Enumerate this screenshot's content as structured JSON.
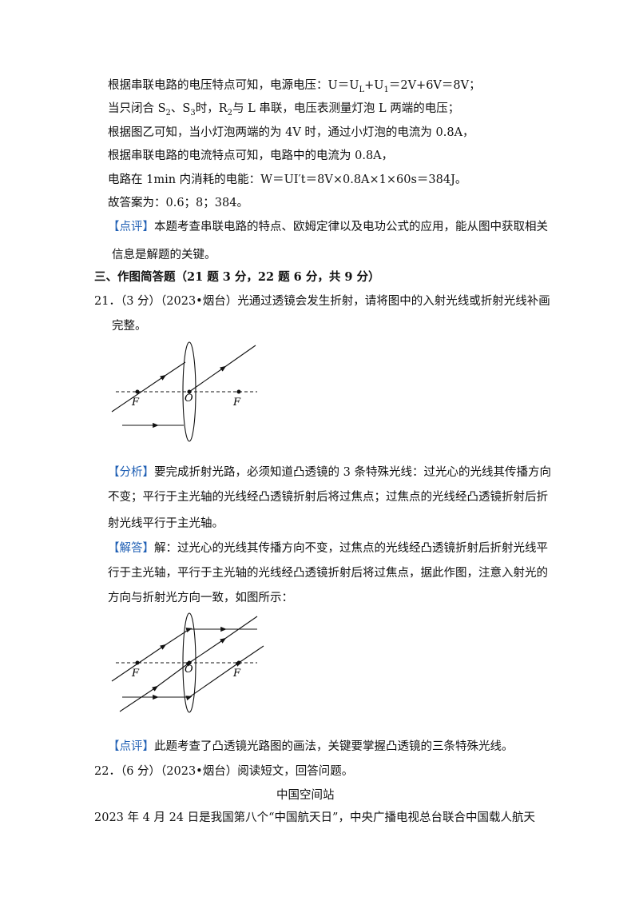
{
  "lines": [
    [
      "根据串联电路的电压特点可知，电源电压：U＝U",
      "L",
      "+U",
      "1",
      "＝2V+6V＝8V；"
    ],
    [
      "当只闭合 S",
      "2",
      "、S",
      "3",
      "时，R",
      "2",
      "与 L 串联，电压表测量灯泡 L 两端的电压；"
    ],
    [
      "根据图乙可知，当小灯泡两端的为 4V 时，通过小灯泡的电流为 0.8A，"
    ],
    [
      "根据串联电路的电流特点可知，电路中的电流为 0.8A，"
    ],
    [
      "电路在 1min 内消耗的电能：W＝UI′t＝8V×0.8A×1×60s＝384J。"
    ],
    [
      "故答案为：0.6；8；384。"
    ],
    [
      "【点评】",
      "本题考查串联电路的特点、欧姆定律以及电功公式的应用，能从图中获取相关"
    ],
    [
      "信息是解题的关键。"
    ],
    [
      "三、作图简答题（21 题 3 分，22 题 6 分，共 9 分）"
    ],
    [
      "21．（3 分）（2023•烟台）光通过透镜会发生折射，请将图中的入射光线或折射光线补画"
    ],
    [
      "完整。"
    ],
    [
      "【分析】",
      "要完成折射光路，必须知道凸透镜的 3 条特殊光线：过光心的光线其传播方向"
    ],
    [
      "不变；平行于主光轴的光线经凸透镜折射后将过焦点；过焦点的光线经凸透镜折射后折"
    ],
    [
      "射光线平行于主光轴。"
    ],
    [
      "【解答】",
      "解：过光心的光线其传播方向不变，过焦点的光线经凸透镜折射后折射光线平"
    ],
    [
      "行于主光轴，平行于主光轴的光线经凸透镜折射后将过焦点，据此作图，注意入射光的"
    ],
    [
      "方向与折射光方向一致，如图所示："
    ],
    [
      "【点评】",
      "此题考查了凸透镜光路图的画法，关键要掌握凸透镜的三条特殊光线。"
    ],
    [
      "22．（6 分）（2023•烟台）阅读短文，回答问题。"
    ],
    [
      "中国空间站"
    ],
    [
      "2023 年 4 月 24 日是我国第八个“中国航天日”，中央广播电视总台联合中国载人航天"
    ]
  ],
  "figures": [
    {
      "labels": [
        "F",
        "O",
        "F"
      ]
    },
    {
      "labels": [
        "F",
        "O",
        "F"
      ]
    }
  ]
}
